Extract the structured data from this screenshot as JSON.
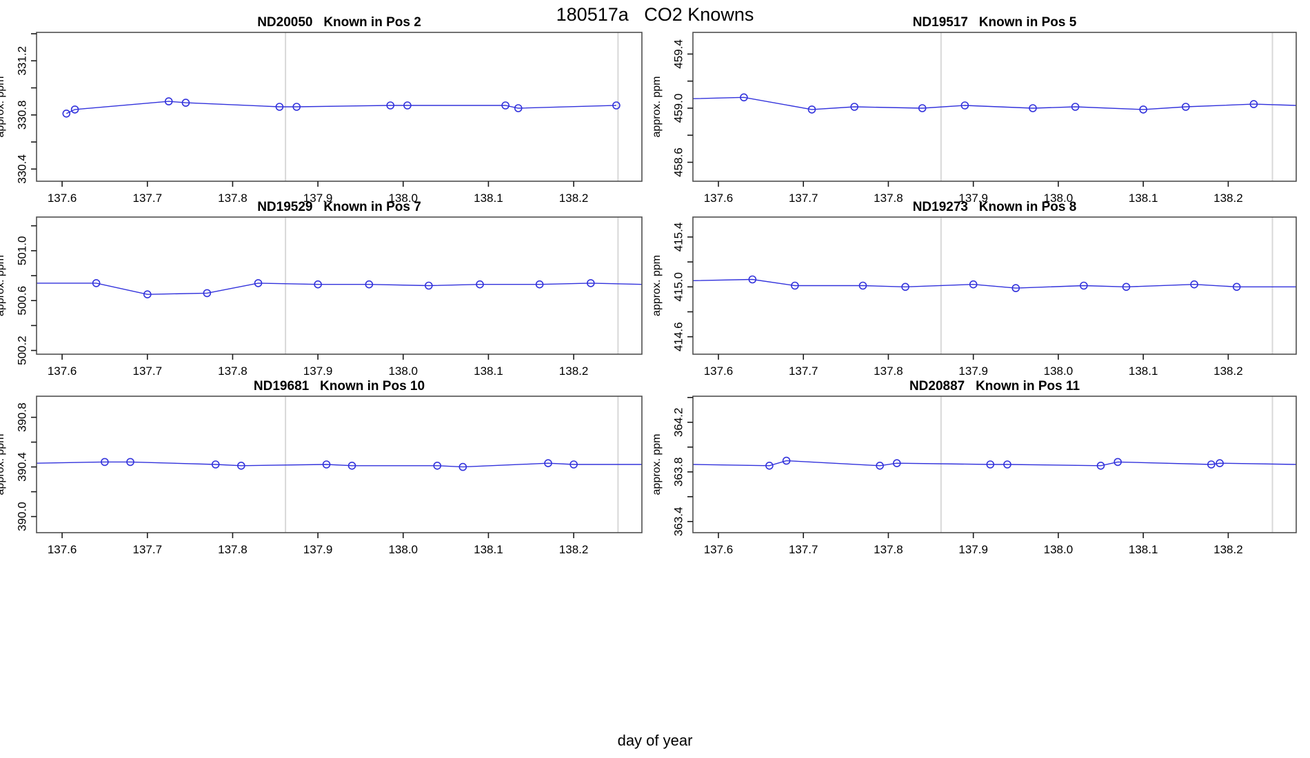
{
  "figure": {
    "title": "180517a   CO2 Knowns",
    "xlabel": "day of year",
    "background": "#ffffff"
  },
  "style": {
    "line_color": "#3232dc",
    "marker_color": "#3232dc",
    "gridline_color": "#d8d8d8",
    "border_color": "#4f4f4f",
    "tick_color": "#1a1a1a",
    "text_color": "#000000"
  },
  "axes": {
    "xlim": [
      137.57,
      138.28
    ],
    "xticks": [
      137.6,
      137.7,
      137.8,
      137.9,
      138.0,
      138.1,
      138.2
    ],
    "vlines": [
      137.862,
      138.252
    ],
    "grid": "vertical-marker-lines-only",
    "legend": "none"
  },
  "chart_data": [
    {
      "type": "line",
      "id": "ND20050",
      "position_label": "Known in Pos 2",
      "title": "ND20050   Known in Pos 2",
      "ylabel": "approx. ppm",
      "ylim": [
        330.31,
        331.41
      ],
      "yticks": [
        330.4,
        330.6,
        330.8,
        331.0,
        331.2,
        331.4
      ],
      "ytick_labels": [
        330.4,
        330.8,
        331.2
      ],
      "x": [
        137.605,
        137.615,
        137.725,
        137.745,
        137.855,
        137.875,
        137.985,
        138.005,
        138.12,
        138.135,
        138.25
      ],
      "y": [
        330.81,
        330.84,
        330.9,
        330.89,
        330.86,
        330.86,
        330.87,
        330.87,
        330.87,
        330.85,
        330.87
      ],
      "edge_start": null,
      "edge_end": null
    },
    {
      "type": "line",
      "id": "ND19517",
      "position_label": "Known in Pos 5",
      "title": "ND19517   Known in Pos 5",
      "ylabel": "approx. ppm",
      "ylim": [
        458.46,
        459.56
      ],
      "yticks": [
        458.6,
        458.8,
        459.0,
        459.2,
        459.4
      ],
      "ytick_labels": [
        458.6,
        459.0,
        459.4
      ],
      "x": [
        137.63,
        137.71,
        137.76,
        137.84,
        137.89,
        137.97,
        138.02,
        138.1,
        138.15,
        138.23
      ],
      "y": [
        459.08,
        458.99,
        459.01,
        459.0,
        459.02,
        459.0,
        459.01,
        458.99,
        459.01,
        459.03
      ],
      "edge_start": 459.07,
      "edge_end": 459.02
    },
    {
      "type": "line",
      "id": "ND19529",
      "position_label": "Known in Pos 7",
      "title": "ND19529   Known in Pos 7",
      "ylabel": "approx. ppm",
      "ylim": [
        500.17,
        501.27
      ],
      "yticks": [
        500.2,
        500.4,
        500.6,
        500.8,
        501.0,
        501.2
      ],
      "ytick_labels": [
        500.2,
        500.6,
        501.0
      ],
      "x": [
        137.64,
        137.7,
        137.77,
        137.83,
        137.9,
        137.96,
        138.03,
        138.09,
        138.16,
        138.22
      ],
      "y": [
        500.74,
        500.65,
        500.66,
        500.74,
        500.73,
        500.73,
        500.72,
        500.73,
        500.73,
        500.74
      ],
      "edge_start": 500.74,
      "edge_end": 500.73
    },
    {
      "type": "line",
      "id": "ND19273",
      "position_label": "Known in Pos 8",
      "title": "ND19273   Known in Pos 8",
      "ylabel": "approx. ppm",
      "ylim": [
        414.46,
        415.56
      ],
      "yticks": [
        414.6,
        414.8,
        415.0,
        415.2,
        415.4
      ],
      "ytick_labels": [
        414.6,
        415.0,
        415.4
      ],
      "x": [
        137.64,
        137.69,
        137.77,
        137.82,
        137.9,
        137.95,
        138.03,
        138.08,
        138.16,
        138.21
      ],
      "y": [
        415.06,
        415.01,
        415.01,
        415.0,
        415.02,
        414.99,
        415.01,
        415.0,
        415.02,
        415.0
      ],
      "edge_start": 415.05,
      "edge_end": 415.0
    },
    {
      "type": "line",
      "id": "ND19681",
      "position_label": "Known in Pos 10",
      "title": "ND19681   Known in Pos 10",
      "ylabel": "approx. ppm",
      "ylim": [
        389.87,
        390.97
      ],
      "yticks": [
        390.0,
        390.2,
        390.4,
        390.6,
        390.8
      ],
      "ytick_labels": [
        390.0,
        390.4,
        390.8
      ],
      "x": [
        137.65,
        137.68,
        137.78,
        137.81,
        137.91,
        137.94,
        138.04,
        138.07,
        138.17,
        138.2
      ],
      "y": [
        390.44,
        390.44,
        390.42,
        390.41,
        390.42,
        390.41,
        390.41,
        390.4,
        390.43,
        390.42
      ],
      "edge_start": 390.43,
      "edge_end": 390.42
    },
    {
      "type": "line",
      "id": "ND20887",
      "position_label": "Known in Pos 11",
      "title": "ND20887   Known in Pos 11",
      "ylabel": "approx. ppm",
      "ylim": [
        363.31,
        364.41
      ],
      "yticks": [
        363.4,
        363.6,
        363.8,
        364.0,
        364.2,
        364.4
      ],
      "ytick_labels": [
        363.4,
        363.8,
        364.2
      ],
      "x": [
        137.66,
        137.68,
        137.79,
        137.81,
        137.92,
        137.94,
        138.05,
        138.07,
        138.18,
        138.19
      ],
      "y": [
        363.85,
        363.89,
        363.85,
        363.87,
        363.86,
        363.86,
        363.85,
        363.88,
        363.86,
        363.87
      ],
      "edge_start": 363.86,
      "edge_end": 363.86
    }
  ]
}
